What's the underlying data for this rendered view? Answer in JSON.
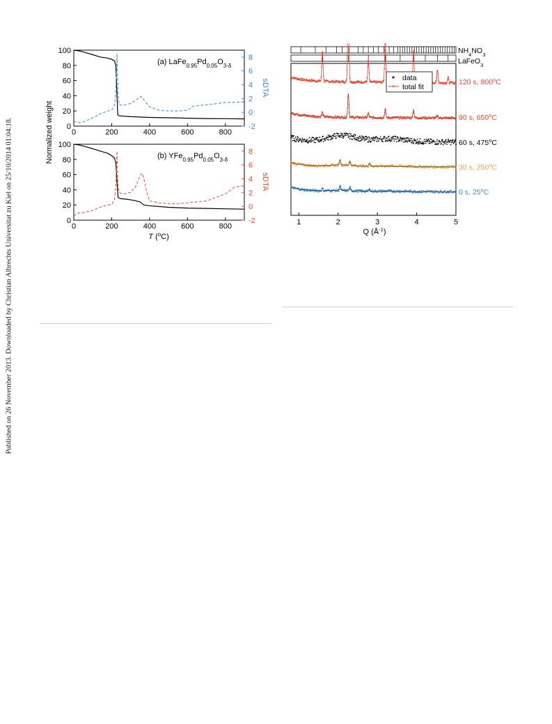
{
  "side_note": "Published on 26 November 2013. Downloaded by Christian Albrechts Universitat zu Kiel on 25/10/2014 01:04:18.",
  "colors": {
    "blue": "#3f86c4",
    "red": "#e8432e",
    "black": "#000000",
    "orange": "#e8a040",
    "blue_label": "#4a8fcf",
    "red_label": "#e23a2a"
  },
  "chart_data": [
    {
      "type": "line",
      "panel_label": "(a) LaFe0.95Pd0.05O3-δ",
      "panel_prefix": "(a) LaFe",
      "sub1": "0.95",
      "mid1": "Pd",
      "sub2": "0.05",
      "mid2": "O",
      "sub3": "3-δ",
      "ylabel": "Normalized weight",
      "y2label": "sDTA",
      "xlim": [
        0,
        900
      ],
      "ylim": [
        0,
        100
      ],
      "y2lim": [
        -2,
        9
      ],
      "y_ticks": [
        "0",
        "20",
        "40",
        "60",
        "80",
        "100"
      ],
      "y2_ticks": [
        "-2",
        "0",
        "2",
        "4",
        "6",
        "8"
      ],
      "x_ticks": [
        "0",
        "200",
        "400",
        "600",
        "800"
      ],
      "series": [
        {
          "style": "solid",
          "axis": "left",
          "x": [
            0,
            30,
            60,
            100,
            140,
            180,
            200,
            215,
            222,
            228,
            232,
            240,
            300,
            400,
            500,
            600,
            700,
            800,
            900
          ],
          "y": [
            100,
            99,
            97,
            94,
            91,
            89.5,
            88,
            86,
            80,
            40,
            15,
            13.5,
            12.5,
            11.5,
            11,
            10.5,
            10,
            9.8,
            9.5
          ]
        },
        {
          "style": "dashed",
          "axis": "right",
          "x": [
            0,
            20,
            50,
            100,
            150,
            180,
            200,
            215,
            222,
            228,
            230,
            233,
            240,
            260,
            300,
            340,
            355,
            370,
            400,
            450,
            500,
            550,
            600,
            630,
            700,
            800,
            900
          ],
          "y": [
            -1.3,
            -1.5,
            -1.4,
            -0.8,
            -0.1,
            0.2,
            0.3,
            1.0,
            3.0,
            8.5,
            6.0,
            3.0,
            1.1,
            1.0,
            1.3,
            2.0,
            2.3,
            1.8,
            0.8,
            0.3,
            0.2,
            0.2,
            0.3,
            0.9,
            1.1,
            1.4,
            1.5
          ]
        }
      ]
    },
    {
      "type": "line",
      "panel_label": "(b) YFe0.95Pd0.05O3-δ",
      "panel_prefix": "(b) YFe",
      "sub1": "0.95",
      "mid1": "Pd",
      "sub2": "0.05",
      "mid2": "O",
      "sub3": "3-δ",
      "y2label": "sDTA",
      "xlabel": "T (°C)",
      "xlabel_T": "T",
      "xlabel_open": " (",
      "xlabel_deg": "o",
      "xlabel_close": "C)",
      "xlim": [
        0,
        900
      ],
      "ylim": [
        0,
        100
      ],
      "y2lim": [
        -2,
        9
      ],
      "y_ticks": [
        "0",
        "20",
        "40",
        "60",
        "80",
        "100"
      ],
      "y2_ticks": [
        "-2",
        "0",
        "2",
        "4",
        "6",
        "8"
      ],
      "x_ticks": [
        "0",
        "200",
        "400",
        "600",
        "800"
      ],
      "series": [
        {
          "style": "solid",
          "axis": "left",
          "x": [
            0,
            30,
            60,
            100,
            140,
            180,
            200,
            215,
            222,
            228,
            234,
            245,
            280,
            320,
            350,
            370,
            400,
            500,
            600,
            700,
            800,
            900
          ],
          "y": [
            100,
            99,
            97,
            94,
            91,
            88,
            85,
            82,
            75,
            50,
            30,
            28.5,
            27.5,
            26,
            24,
            20,
            19,
            17,
            16,
            15.5,
            15,
            14.5
          ]
        },
        {
          "style": "dashed",
          "axis": "right",
          "x": [
            0,
            20,
            50,
            100,
            150,
            180,
            200,
            215,
            222,
            228,
            230,
            233,
            240,
            260,
            300,
            330,
            350,
            360,
            370,
            385,
            400,
            450,
            500,
            550,
            600,
            700,
            800,
            850,
            900
          ],
          "y": [
            -1.4,
            -1.0,
            -0.9,
            -0.6,
            0.0,
            0.2,
            0.3,
            1.0,
            3.0,
            8.0,
            6.0,
            3.0,
            2.0,
            1.8,
            2.0,
            3.0,
            4.5,
            4.8,
            4.0,
            2.0,
            0.8,
            0.5,
            0.4,
            0.4,
            0.5,
            0.8,
            1.8,
            2.8,
            3.0
          ]
        }
      ]
    },
    {
      "type": "scatter",
      "xlabel": "Q (Å-1)",
      "xlabel_main": "Q (Å",
      "xlabel_sup": "-1",
      "xlabel_close": ")",
      "xlim": [
        0.8,
        5.0
      ],
      "x_ticks": [
        "1",
        "2",
        "3",
        "4",
        "5"
      ],
      "legend": {
        "placement": "top-center",
        "data_label": "data",
        "fit_label": "total fit"
      },
      "reference_phases": [
        {
          "name": "NH4NO3",
          "base": "NH",
          "sub": "4",
          "mid": "NO",
          "sub2": "3",
          "ticks": [
            1.05,
            1.42,
            1.69,
            1.96,
            2.1,
            2.27,
            2.51,
            2.64,
            2.77,
            2.9,
            3.02,
            3.17,
            3.3,
            3.41,
            3.52,
            3.58,
            3.64,
            3.7,
            3.76,
            3.82,
            3.88,
            3.94,
            4.0,
            4.06,
            4.12,
            4.18,
            4.24,
            4.3,
            4.36,
            4.42,
            4.48,
            4.54,
            4.6,
            4.66,
            4.72,
            4.78,
            4.84,
            4.9,
            4.96
          ]
        },
        {
          "name": "LaFeO3",
          "base": "LaFeO",
          "sub": "3",
          "mid": "",
          "sub2": "",
          "ticks": [
            1.6,
            2.26,
            2.77,
            3.2,
            3.58,
            3.92,
            4.22,
            4.53,
            4.8
          ]
        }
      ],
      "series": [
        {
          "name": "120 s, 800°C",
          "time": "120 s, 800",
          "deg": "o",
          "unit": "C",
          "color": "#e8432e",
          "fit": "#e8432e",
          "base": 120,
          "slope": -0.003,
          "hump": 0,
          "peaks": [
            [
              1.6,
              28
            ],
            [
              2.26,
              100
            ],
            [
              2.77,
              20
            ],
            [
              3.2,
              40
            ],
            [
              3.58,
              8
            ],
            [
              3.92,
              30
            ],
            [
              4.53,
              12
            ],
            [
              4.8,
              5
            ]
          ]
        },
        {
          "name": "90 s, 650°C",
          "time": "90 s, 650",
          "deg": "o",
          "unit": "C",
          "color": "#e8432e",
          "fit": "#b9332a",
          "base": 87,
          "slope": -0.002,
          "hump": 0,
          "peaks": [
            [
              1.6,
              4
            ],
            [
              2.26,
              22
            ],
            [
              2.77,
              4
            ],
            [
              3.2,
              8
            ],
            [
              3.92,
              7
            ],
            [
              4.53,
              2
            ]
          ]
        },
        {
          "name": "60 s, 475°C",
          "time": "60 s, 475",
          "deg": "o",
          "unit": "C",
          "color": "#000000",
          "fit": "#444444",
          "base": 64,
          "slope": 0,
          "hump": 6,
          "peaks": []
        },
        {
          "name": "30 s, 250°C",
          "time": "30 s, 250",
          "deg": "o",
          "unit": "C",
          "color": "#e8a040",
          "fit": "#5a4020",
          "base": 41,
          "slope": 0,
          "hump": 1.5,
          "peaks": [
            [
              2.05,
              5
            ],
            [
              2.3,
              4
            ],
            [
              2.8,
              3
            ]
          ]
        },
        {
          "name": "0 s, 25°C",
          "time": "0 s, 25",
          "deg": "o",
          "unit": "C",
          "color": "#3f86c4",
          "fit": "#1d3e5f",
          "base": 18,
          "slope": 0,
          "hump": 1,
          "peaks": [
            [
              1.6,
              2
            ],
            [
              2.05,
              4
            ],
            [
              2.3,
              3
            ],
            [
              2.8,
              2
            ]
          ]
        }
      ]
    }
  ]
}
